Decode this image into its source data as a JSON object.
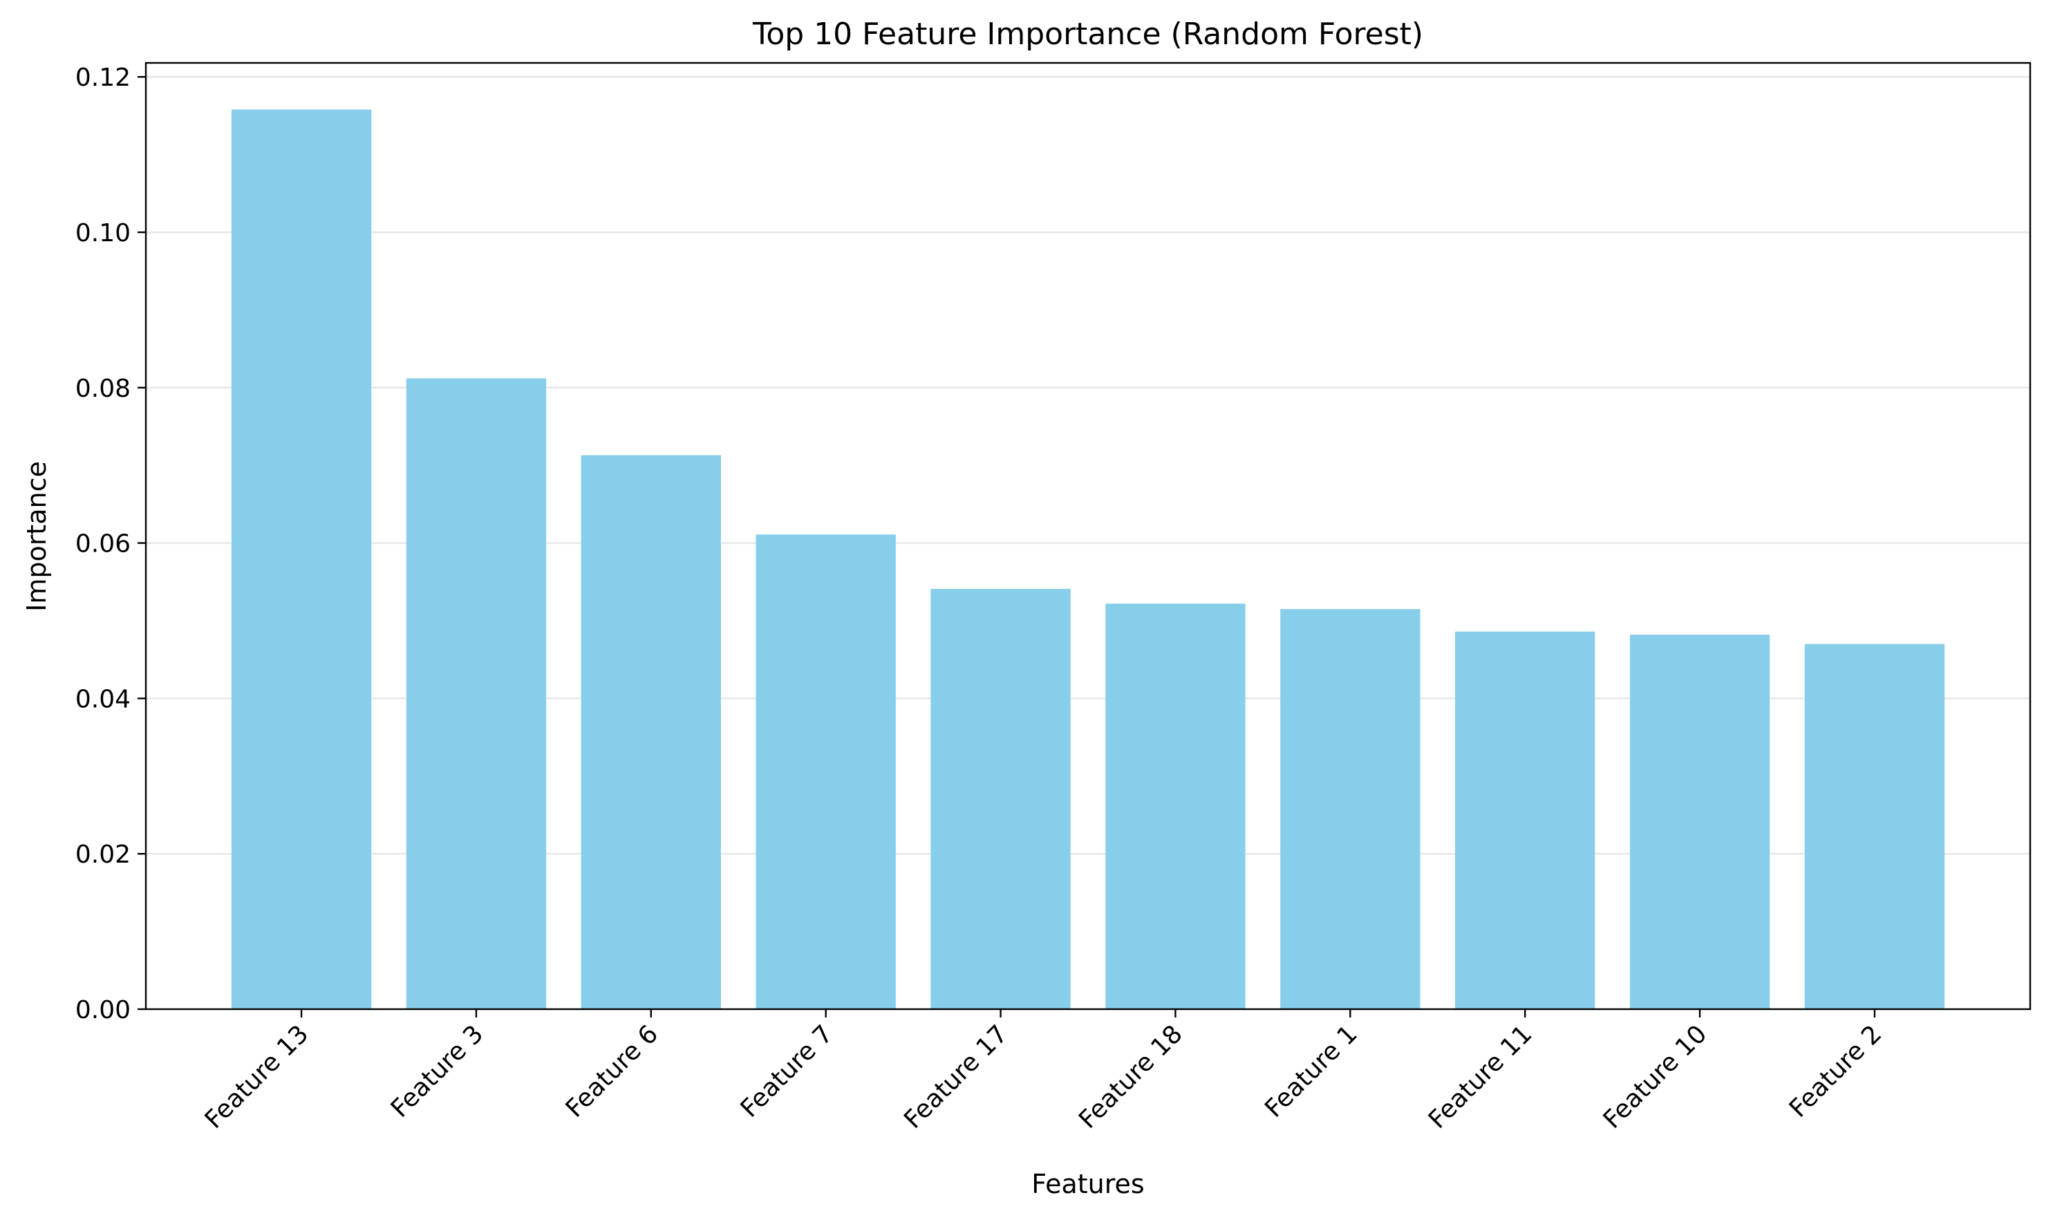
{
  "chart_data": {
    "type": "bar",
    "title": "Top 10 Feature Importance (Random Forest)",
    "xlabel": "Features",
    "ylabel": "Importance",
    "categories": [
      "Feature 13",
      "Feature 3",
      "Feature 6",
      "Feature 7",
      "Feature 17",
      "Feature 18",
      "Feature 1",
      "Feature 11",
      "Feature 10",
      "Feature 2"
    ],
    "values": [
      0.1158,
      0.0812,
      0.0713,
      0.0611,
      0.0541,
      0.0522,
      0.0515,
      0.0486,
      0.0482,
      0.047
    ],
    "ylim": [
      0,
      0.1218
    ],
    "yticks": [
      0.0,
      0.02,
      0.04,
      0.06,
      0.08,
      0.1,
      0.12
    ],
    "ytick_labels": [
      "0.00",
      "0.02",
      "0.04",
      "0.06",
      "0.08",
      "0.10",
      "0.12"
    ],
    "grid": "y-axis major gridlines",
    "legend": "none",
    "bar_color": "#87CEEB",
    "grid_color": "#e6e6e6",
    "axis_color": "#000000"
  }
}
